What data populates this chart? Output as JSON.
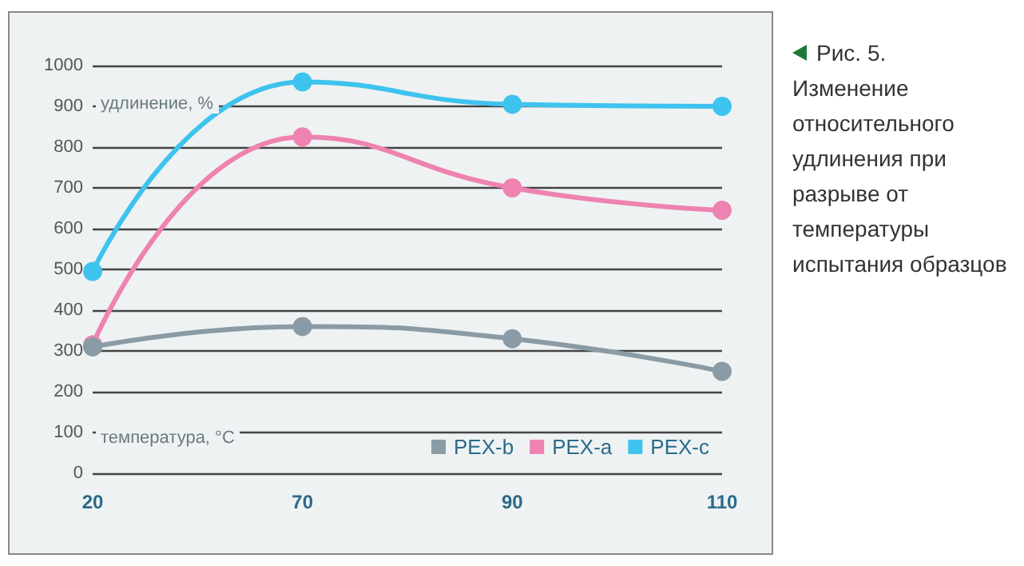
{
  "chart_data": {
    "type": "line",
    "xlabel": "температура, °C",
    "ylabel": "удлинение, %",
    "annotations": [
      "Рис. 5.",
      "Изменение относительного удлинения при разрыве от температуры испытания образцов"
    ],
    "categories": [
      "20",
      "70",
      "90",
      "110"
    ],
    "series": [
      {
        "name": "PEX-b",
        "color": "#8a9ba6",
        "values": [
          310,
          360,
          330,
          250
        ]
      },
      {
        "name": "PEX-a",
        "color": "#ee82b0",
        "values": [
          315,
          825,
          700,
          645
        ]
      },
      {
        "name": "PEX-c",
        "color": "#3ec3ee",
        "values": [
          495,
          960,
          905,
          900
        ]
      }
    ],
    "ylim": [
      0,
      1000
    ],
    "yticks": [
      0,
      100,
      200,
      300,
      400,
      500,
      600,
      700,
      800,
      900,
      1000
    ],
    "grid": "y",
    "legend": "bottom right",
    "marker": "circle",
    "line_style": "solid"
  }
}
